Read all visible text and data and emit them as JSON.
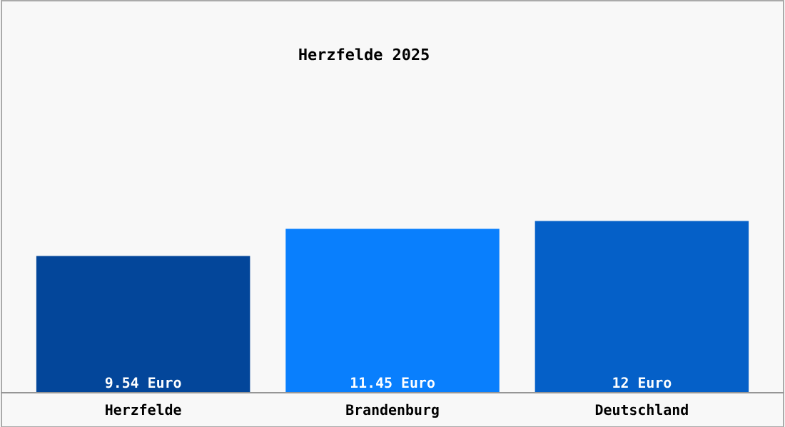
{
  "chart_data": {
    "type": "bar",
    "title": "Herzfelde 2025",
    "categories": [
      "Herzfelde",
      "Brandenburg",
      "Deutschland"
    ],
    "values": [
      9.54,
      11.45,
      12
    ],
    "colors": [
      "#03469a",
      "#097ffd",
      "#0560c8"
    ],
    "value_labels": [
      "9.54 Euro",
      "11.45 Euro",
      "12 Euro"
    ]
  }
}
